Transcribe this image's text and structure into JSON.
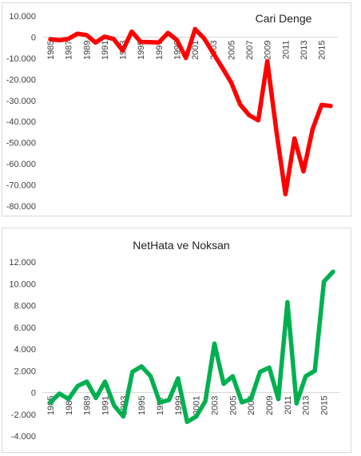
{
  "chart_data": [
    {
      "type": "line",
      "title": "Cari Denge",
      "x": [
        1985,
        1986,
        1987,
        1988,
        1989,
        1990,
        1991,
        1992,
        1993,
        1994,
        1995,
        1996,
        1997,
        1998,
        1999,
        2000,
        2001,
        2002,
        2003,
        2004,
        2005,
        2006,
        2007,
        2008,
        2009,
        2010,
        2011,
        2012,
        2013,
        2014,
        2015,
        2016
      ],
      "xticks": [
        "1985",
        "1987",
        "1989",
        "1991",
        "1993",
        "1995",
        "1997",
        "1999",
        "2001",
        "2003",
        "2005",
        "2007",
        "2009",
        "2011",
        "2013",
        "2015"
      ],
      "yticks": [
        "10.000",
        "0",
        "-10.000",
        "-20.000",
        "-30.000",
        "-40.000",
        "-50.000",
        "-60.000",
        "-70.000",
        "-80.000"
      ],
      "series": [
        {
          "color": "#ff0000",
          "values": [
            -1000,
            -1500,
            -800,
            1600,
            1000,
            -2600,
            200,
            -900,
            -6400,
            2600,
            -2300,
            -2400,
            -2600,
            2000,
            -1400,
            -9900,
            3800,
            -600,
            -7500,
            -14400,
            -21500,
            -32000,
            -37000,
            -39400,
            -11400,
            -44600,
            -74400,
            -48000,
            -63600,
            -43600,
            -32100,
            -32600
          ]
        }
      ],
      "ylim": [
        -80000,
        10000
      ],
      "grid": false,
      "legend": "none"
    },
    {
      "type": "line",
      "title": "NetHata ve Noksan",
      "x": [
        1985,
        1986,
        1987,
        1988,
        1989,
        1990,
        1991,
        1992,
        1993,
        1994,
        1995,
        1996,
        1997,
        1998,
        1999,
        2000,
        2001,
        2002,
        2003,
        2004,
        2005,
        2006,
        2007,
        2008,
        2009,
        2010,
        2011,
        2012,
        2013,
        2014,
        2015,
        2016
      ],
      "xticks": [
        "1985",
        "1987",
        "1989",
        "1991",
        "1993",
        "1995",
        "1997",
        "1999",
        "2001",
        "2003",
        "2005",
        "2007",
        "2009",
        "2011",
        "2013",
        "2015"
      ],
      "yticks": [
        "12.000",
        "10.000",
        "8.000",
        "6.000",
        "4.000",
        "2.000",
        "0",
        "-2.000",
        "-4.000"
      ],
      "series": [
        {
          "color": "#00b050",
          "values": [
            -900,
            -100,
            -600,
            600,
            1000,
            -500,
            1000,
            -1200,
            -2200,
            1900,
            2400,
            1500,
            -900,
            -700,
            1300,
            -2700,
            -2200,
            -800,
            4500,
            800,
            1500,
            -900,
            -600,
            1900,
            2300,
            -600,
            8300,
            -1000,
            1500,
            2000,
            10200,
            11100
          ]
        }
      ],
      "ylim": [
        -4000,
        12000
      ],
      "grid": false,
      "legend": "none"
    }
  ]
}
